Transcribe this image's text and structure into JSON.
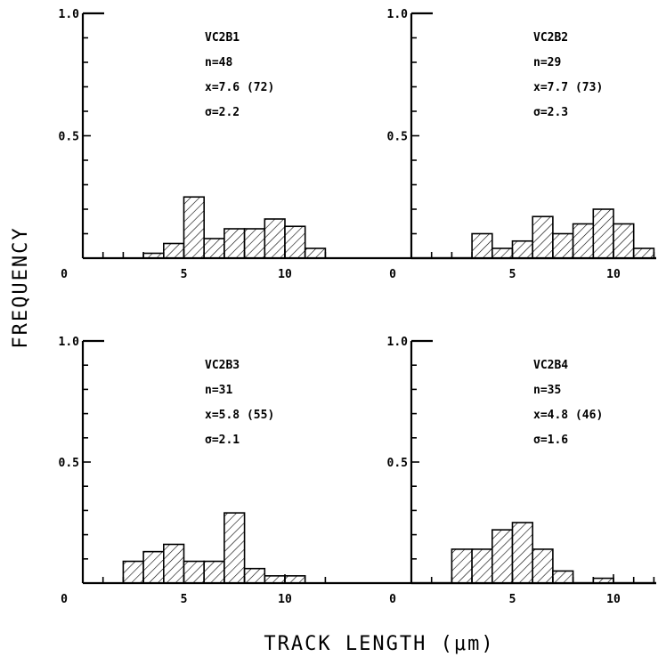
{
  "figure": {
    "xlabel": "TRACK LENGTH (μm)",
    "ylabel": "FREQUENCY"
  },
  "chart_data": [
    {
      "type": "bar",
      "ylim": [
        0,
        1.0
      ],
      "xlim": [
        0,
        11.5
      ],
      "yticks": [
        "0",
        "0.5",
        "1.0"
      ],
      "xticks": [
        "5",
        "10"
      ],
      "bin_width": 1,
      "bins": [
        [
          3,
          4
        ],
        [
          4,
          5
        ],
        [
          5,
          6
        ],
        [
          6,
          7
        ],
        [
          7,
          8
        ],
        [
          8,
          9
        ],
        [
          9,
          10
        ],
        [
          10,
          11
        ],
        [
          11,
          12
        ]
      ],
      "values": [
        0.02,
        0.06,
        0.25,
        0.08,
        0.12,
        0.12,
        0.16,
        0.13,
        0.04
      ],
      "annotations": [
        "VC2B1",
        "n=48",
        "x=7.6 (72)",
        "σ=2.2"
      ]
    },
    {
      "type": "bar",
      "ylim": [
        0,
        1.0
      ],
      "xlim": [
        0,
        11.5
      ],
      "yticks": [
        "0",
        "0.5",
        "1.0"
      ],
      "xticks": [
        "5",
        "10"
      ],
      "bin_width": 1,
      "bins": [
        [
          3,
          4
        ],
        [
          4,
          5
        ],
        [
          5,
          6
        ],
        [
          6,
          7
        ],
        [
          7,
          8
        ],
        [
          8,
          9
        ],
        [
          9,
          10
        ],
        [
          10,
          11
        ],
        [
          11,
          12
        ]
      ],
      "values": [
        0.1,
        0.04,
        0.07,
        0.17,
        0.1,
        0.14,
        0.2,
        0.14,
        0.04
      ],
      "annotations": [
        "VC2B2",
        "n=29",
        "x=7.7 (73)",
        "σ=2.3"
      ]
    },
    {
      "type": "bar",
      "ylim": [
        0,
        1.0
      ],
      "xlim": [
        0,
        11.5
      ],
      "yticks": [
        "0",
        "0.5",
        "1.0"
      ],
      "xticks": [
        "5",
        "10"
      ],
      "bin_width": 1,
      "bins": [
        [
          2,
          3
        ],
        [
          3,
          4
        ],
        [
          4,
          5
        ],
        [
          5,
          6
        ],
        [
          6,
          7
        ],
        [
          7,
          8
        ],
        [
          8,
          9
        ],
        [
          9,
          10
        ],
        [
          10,
          11
        ]
      ],
      "values": [
        0.09,
        0.13,
        0.16,
        0.09,
        0.09,
        0.29,
        0.06,
        0.03,
        0.03
      ],
      "annotations": [
        "VC2B3",
        "n=31",
        "x=5.8 (55)",
        "σ=2.1"
      ]
    },
    {
      "type": "bar",
      "ylim": [
        0,
        1.0
      ],
      "xlim": [
        0,
        11.5
      ],
      "yticks": [
        "0",
        "0.5",
        "1.0"
      ],
      "xticks": [
        "5",
        "10"
      ],
      "bin_width": 1,
      "bins": [
        [
          2,
          3
        ],
        [
          3,
          4
        ],
        [
          4,
          5
        ],
        [
          5,
          6
        ],
        [
          6,
          7
        ],
        [
          7,
          8
        ],
        [
          9,
          10
        ]
      ],
      "values": [
        0.14,
        0.14,
        0.22,
        0.25,
        0.14,
        0.05,
        0.02
      ],
      "annotations": [
        "VC2B4",
        "n=35",
        "x=4.8 (46)",
        "σ=1.6"
      ]
    }
  ]
}
